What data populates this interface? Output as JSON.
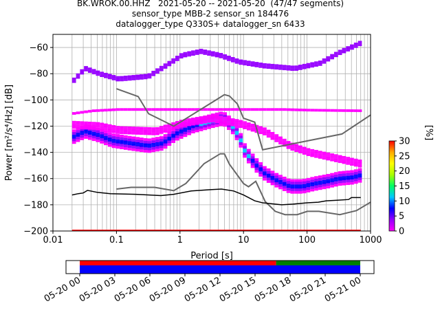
{
  "title_lines": [
    "BK.WROK.00.HHZ   2021-05-20 -- 2021-05-20  (47/47 segments)",
    "sensor_type MBB-2 sensor_sn 184476",
    "datalogger_type Q330S+ datalogger_sn 6433"
  ],
  "colors": {
    "noise_model": "#666666",
    "mode_line": "#000000",
    "grid": "#b0b0b0",
    "coverage_data": "#0000ff",
    "coverage_gap_top": "#ff0000",
    "coverage_gap_green": "#008000",
    "bottom_row": "#ff0000"
  },
  "chart_data": {
    "type": "heatmap",
    "subtype": "probabilistic power spectral density",
    "xlabel": "Period [s]",
    "ylabel": "Power [m²/s⁴/Hz] [dB]",
    "xscale": "log",
    "xlim": [
      0.01,
      1000
    ],
    "ylim": [
      -200,
      -50
    ],
    "xticks": [
      0.01,
      0.1,
      1,
      10,
      100,
      1000
    ],
    "xtick_labels": [
      "0.01",
      "0.1",
      "1",
      "10",
      "100",
      "1000"
    ],
    "yticks": [
      -200,
      -180,
      -160,
      -140,
      -120,
      -100,
      -80,
      -60
    ],
    "ytick_labels": [
      "−200",
      "−180",
      "−160",
      "−140",
      "−120",
      "−100",
      "−80",
      "−60"
    ],
    "grid": true,
    "colorbar": {
      "label": "[%]",
      "min": 0,
      "max": 30,
      "ticks": [
        0,
        5,
        10,
        15,
        20,
        25,
        30
      ],
      "tick_labels": [
        "0",
        "5",
        "10",
        "15",
        "20",
        "25",
        "30"
      ],
      "colormap": [
        "#ff00ff",
        "#9600ff",
        "#0000ff",
        "#00c8ff",
        "#00ff64",
        "#aaff00",
        "#ffff00",
        "#ffaa00",
        "#ff0000"
      ]
    },
    "noise_models": {
      "NHNM": [
        [
          0.1,
          -91.5
        ],
        [
          0.22,
          -97.4
        ],
        [
          0.32,
          -110.5
        ],
        [
          0.8,
          -120
        ],
        [
          2,
          -108
        ],
        [
          4,
          -99
        ],
        [
          5,
          -96
        ],
        [
          6,
          -97
        ],
        [
          8,
          -103
        ],
        [
          10,
          -114
        ],
        [
          15,
          -117
        ],
        [
          20,
          -138
        ],
        [
          354.8,
          -126
        ],
        [
          1000,
          -111.5
        ]
      ],
      "NLNM": [
        [
          0.1,
          -168
        ],
        [
          0.17,
          -166.7
        ],
        [
          0.4,
          -166.7
        ],
        [
          0.8,
          -169.2
        ],
        [
          1.24,
          -163.7
        ],
        [
          2.4,
          -148.6
        ],
        [
          4.3,
          -141.1
        ],
        [
          5,
          -141.1
        ],
        [
          6,
          -149
        ],
        [
          10,
          -163.8
        ],
        [
          12,
          -166.2
        ],
        [
          15.6,
          -162.1
        ],
        [
          21.9,
          -177.5
        ],
        [
          31.6,
          -185
        ],
        [
          45,
          -187.5
        ],
        [
          70,
          -187.5
        ],
        [
          101,
          -185
        ],
        [
          154,
          -185
        ],
        [
          328,
          -187.5
        ],
        [
          600,
          -184.4
        ],
        [
          1000,
          -178
        ]
      ]
    },
    "mode_curve": [
      [
        0.02,
        -172.5
      ],
      [
        0.025,
        -171.5
      ],
      [
        0.03,
        -171
      ],
      [
        0.035,
        -169
      ],
      [
        0.05,
        -170.5
      ],
      [
        0.08,
        -171.5
      ],
      [
        0.2,
        -172
      ],
      [
        0.5,
        -173
      ],
      [
        0.8,
        -172
      ],
      [
        1.5,
        -169.5
      ],
      [
        3,
        -168.5
      ],
      [
        4.5,
        -168
      ],
      [
        7,
        -169.5
      ],
      [
        10,
        -172.5
      ],
      [
        15,
        -177
      ],
      [
        20,
        -178.5
      ],
      [
        40,
        -180
      ],
      [
        60,
        -179.5
      ],
      [
        100,
        -178.5
      ],
      [
        150,
        -178
      ],
      [
        200,
        -177
      ],
      [
        300,
        -176.5
      ],
      [
        450,
        -176
      ],
      [
        500,
        -174.5
      ],
      [
        700,
        -174.5
      ]
    ],
    "density": {
      "main_band": [
        [
          0.02,
          -128
        ],
        [
          0.03,
          -124
        ],
        [
          0.05,
          -127
        ],
        [
          0.08,
          -131
        ],
        [
          0.15,
          -133
        ],
        [
          0.3,
          -135
        ],
        [
          0.5,
          -133
        ],
        [
          0.8,
          -126
        ],
        [
          1.5,
          -120
        ],
        [
          3,
          -116
        ],
        [
          4.5,
          -114
        ],
        [
          6,
          -119
        ],
        [
          8,
          -128
        ],
        [
          10,
          -140
        ],
        [
          15,
          -150
        ],
        [
          20,
          -156
        ],
        [
          30,
          -161
        ],
        [
          50,
          -166
        ],
        [
          80,
          -166
        ],
        [
          120,
          -164
        ],
        [
          200,
          -162
        ],
        [
          300,
          -160
        ],
        [
          500,
          -159
        ],
        [
          700,
          -157
        ]
      ],
      "upper_band": [
        [
          0.02,
          -110
        ],
        [
          0.04,
          -108
        ],
        [
          0.1,
          -107
        ],
        [
          1,
          -107
        ],
        [
          10,
          -107
        ],
        [
          40,
          -107
        ],
        [
          100,
          -107.5
        ],
        [
          700,
          -108
        ]
      ],
      "top_band": [
        [
          0.02,
          -85
        ],
        [
          0.03,
          -76
        ],
        [
          0.05,
          -80
        ],
        [
          0.1,
          -84
        ],
        [
          0.3,
          -82
        ],
        [
          0.6,
          -73
        ],
        [
          1,
          -66
        ],
        [
          2,
          -63
        ],
        [
          4,
          -66
        ],
        [
          8,
          -71
        ],
        [
          20,
          -74
        ],
        [
          60,
          -76
        ],
        [
          150,
          -72
        ],
        [
          300,
          -64
        ],
        [
          700,
          -56
        ]
      ],
      "mid_band": [
        [
          0.02,
          -119
        ],
        [
          0.05,
          -120
        ],
        [
          0.1,
          -123
        ],
        [
          0.4,
          -124
        ],
        [
          1,
          -118
        ],
        [
          3,
          -114
        ],
        [
          8,
          -118
        ],
        [
          20,
          -124
        ],
        [
          50,
          -135
        ],
        [
          100,
          -140
        ],
        [
          300,
          -145
        ],
        [
          700,
          -149
        ]
      ],
      "bottom_row": [
        [
          0.02,
          -199.5
        ],
        [
          700,
          -199.5
        ]
      ]
    }
  },
  "timeline": {
    "tick_labels": [
      "05-20 00",
      "05-20 03",
      "05-20 06",
      "05-20 09",
      "05-20 12",
      "05-20 15",
      "05-20 18",
      "05-20 21",
      "05-21 00"
    ],
    "hours": [
      0,
      3,
      6,
      9,
      12,
      15,
      18,
      21,
      24
    ],
    "data_coverage": [
      [
        0,
        24
      ]
    ],
    "gap_top_red": [
      [
        0,
        16.8
      ]
    ],
    "gap_top_green": [
      [
        16.8,
        24
      ]
    ]
  }
}
